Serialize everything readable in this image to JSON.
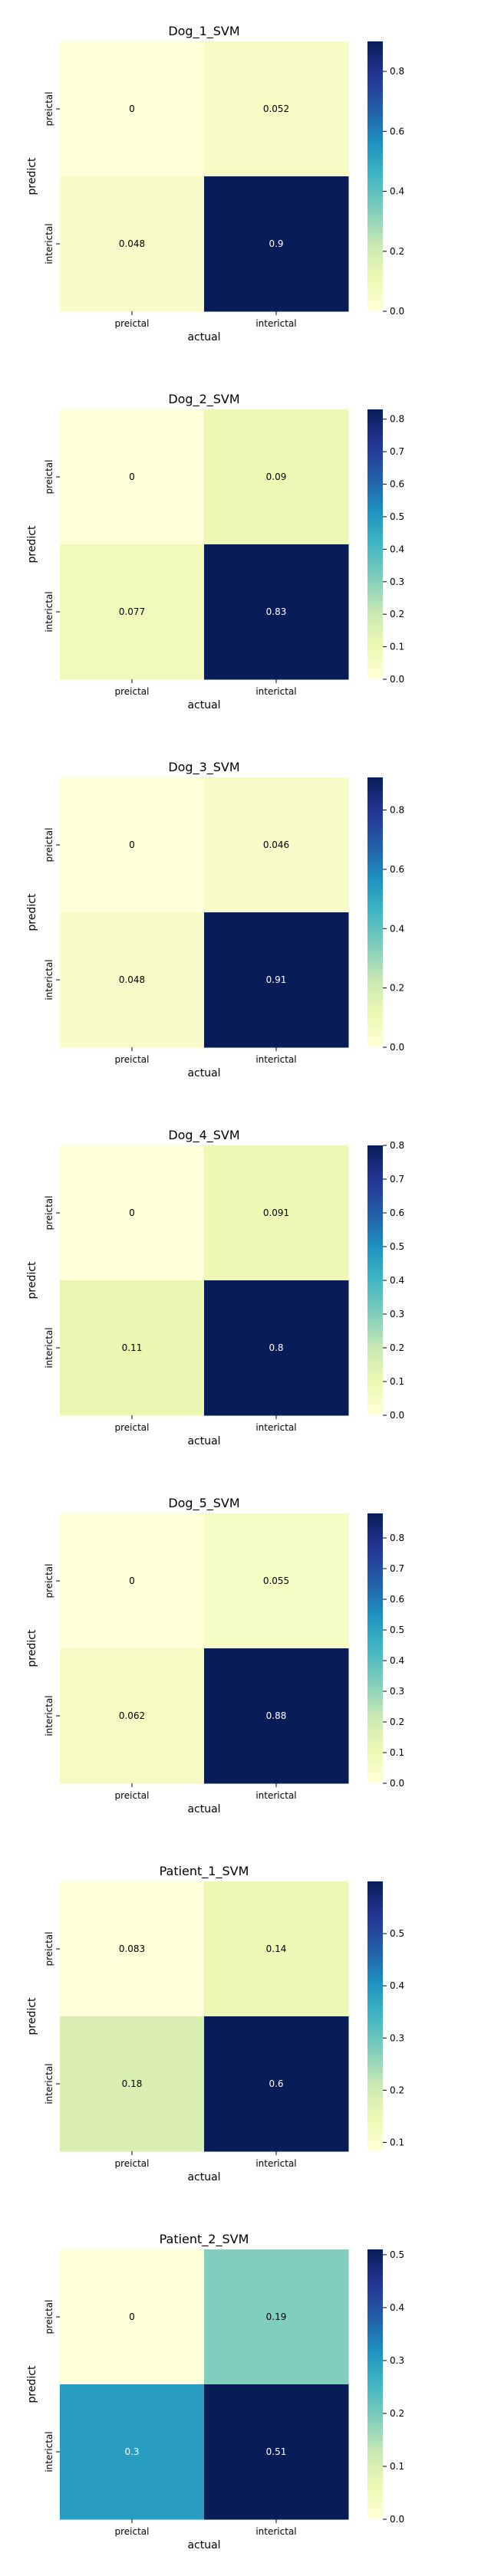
{
  "colors": {
    "ylgnbu_stops": [
      "#ffffd9",
      "#edf8b1",
      "#c7e9b4",
      "#7fcdbb",
      "#41b6c4",
      "#1d91c0",
      "#225ea8",
      "#253494",
      "#081d58"
    ],
    "text_dark": "#000000",
    "text_light": "#ffffff"
  },
  "chart_data": [
    {
      "type": "heatmap",
      "title": "Dog_1_SVM",
      "xlabel": "actual",
      "ylabel": "predict",
      "x_categories": [
        "preictal",
        "interictal"
      ],
      "y_categories": [
        "preictal",
        "interictal"
      ],
      "values": [
        [
          0,
          0.052
        ],
        [
          0.048,
          0.9
        ]
      ],
      "value_labels": [
        [
          "0",
          "0.052"
        ],
        [
          "0.048",
          "0.9"
        ]
      ],
      "colorbar": {
        "range": [
          0,
          0.9
        ],
        "ticks": [
          "0.0",
          "0.2",
          "0.4",
          "0.6",
          "0.8"
        ]
      }
    },
    {
      "type": "heatmap",
      "title": "Dog_2_SVM",
      "xlabel": "actual",
      "ylabel": "predict",
      "x_categories": [
        "preictal",
        "interictal"
      ],
      "y_categories": [
        "preictal",
        "interictal"
      ],
      "values": [
        [
          0,
          0.09
        ],
        [
          0.077,
          0.83
        ]
      ],
      "value_labels": [
        [
          "0",
          "0.09"
        ],
        [
          "0.077",
          "0.83"
        ]
      ],
      "colorbar": {
        "range": [
          0,
          0.83
        ],
        "ticks": [
          "0.0",
          "0.1",
          "0.2",
          "0.3",
          "0.4",
          "0.5",
          "0.6",
          "0.7",
          "0.8"
        ]
      }
    },
    {
      "type": "heatmap",
      "title": "Dog_3_SVM",
      "xlabel": "actual",
      "ylabel": "predict",
      "x_categories": [
        "preictal",
        "interictal"
      ],
      "y_categories": [
        "preictal",
        "interictal"
      ],
      "values": [
        [
          0,
          0.046
        ],
        [
          0.048,
          0.91
        ]
      ],
      "value_labels": [
        [
          "0",
          "0.046"
        ],
        [
          "0.048",
          "0.91"
        ]
      ],
      "colorbar": {
        "range": [
          0,
          0.91
        ],
        "ticks": [
          "0.0",
          "0.2",
          "0.4",
          "0.6",
          "0.8"
        ]
      }
    },
    {
      "type": "heatmap",
      "title": "Dog_4_SVM",
      "xlabel": "actual",
      "ylabel": "predict",
      "x_categories": [
        "preictal",
        "interictal"
      ],
      "y_categories": [
        "preictal",
        "interictal"
      ],
      "values": [
        [
          0,
          0.091
        ],
        [
          0.11,
          0.8
        ]
      ],
      "value_labels": [
        [
          "0",
          "0.091"
        ],
        [
          "0.11",
          "0.8"
        ]
      ],
      "colorbar": {
        "range": [
          0,
          0.8
        ],
        "ticks": [
          "0.0",
          "0.1",
          "0.2",
          "0.3",
          "0.4",
          "0.5",
          "0.6",
          "0.7",
          "0.8"
        ]
      }
    },
    {
      "type": "heatmap",
      "title": "Dog_5_SVM",
      "xlabel": "actual",
      "ylabel": "predict",
      "x_categories": [
        "preictal",
        "interictal"
      ],
      "y_categories": [
        "preictal",
        "interictal"
      ],
      "values": [
        [
          0,
          0.055
        ],
        [
          0.062,
          0.88
        ]
      ],
      "value_labels": [
        [
          "0",
          "0.055"
        ],
        [
          "0.062",
          "0.88"
        ]
      ],
      "colorbar": {
        "range": [
          0,
          0.88
        ],
        "ticks": [
          "0.0",
          "0.1",
          "0.2",
          "0.3",
          "0.4",
          "0.5",
          "0.6",
          "0.7",
          "0.8"
        ]
      }
    },
    {
      "type": "heatmap",
      "title": "Patient_1_SVM",
      "xlabel": "actual",
      "ylabel": "predict",
      "x_categories": [
        "preictal",
        "interictal"
      ],
      "y_categories": [
        "preictal",
        "interictal"
      ],
      "values": [
        [
          0.083,
          0.14
        ],
        [
          0.18,
          0.6
        ]
      ],
      "value_labels": [
        [
          "0.083",
          "0.14"
        ],
        [
          "0.18",
          "0.6"
        ]
      ],
      "colorbar": {
        "range": [
          0.083,
          0.6
        ],
        "ticks": [
          "0.1",
          "0.2",
          "0.3",
          "0.4",
          "0.5"
        ]
      }
    },
    {
      "type": "heatmap",
      "title": "Patient_2_SVM",
      "xlabel": "actual",
      "ylabel": "predict",
      "x_categories": [
        "preictal",
        "interictal"
      ],
      "y_categories": [
        "preictal",
        "interictal"
      ],
      "values": [
        [
          0,
          0.19
        ],
        [
          0.3,
          0.51
        ]
      ],
      "value_labels": [
        [
          "0",
          "0.19"
        ],
        [
          "0.3",
          "0.51"
        ]
      ],
      "colorbar": {
        "range": [
          0,
          0.51
        ],
        "ticks": [
          "0.0",
          "0.1",
          "0.2",
          "0.3",
          "0.4",
          "0.5"
        ]
      }
    }
  ]
}
